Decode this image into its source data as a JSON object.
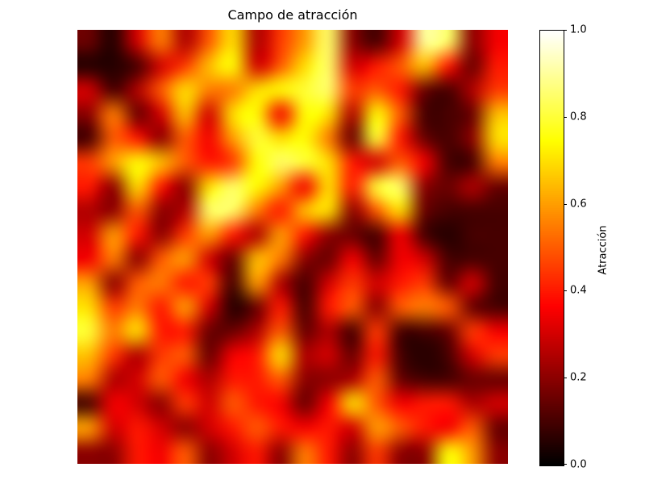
{
  "figure": {
    "background_color": "#ffffff",
    "text_color": "#000000"
  },
  "chart_data": {
    "type": "heatmap",
    "title": "Campo de atracción",
    "xlabel": "",
    "ylabel": "",
    "axis": "off",
    "grid": false,
    "legend": "none",
    "colorbar_label": "Atracción",
    "colorbar_position": "right",
    "vmin": 0.0,
    "vmax": 1.0,
    "colormap": "hot",
    "colormap_stops": [
      {
        "t": 0.0,
        "color": "#000000"
      },
      {
        "t": 0.365,
        "color": "#ff0000"
      },
      {
        "t": 0.746,
        "color": "#ffff00"
      },
      {
        "t": 1.0,
        "color": "#ffffff"
      }
    ],
    "colorbar_ticks": [
      {
        "value": 0.0,
        "label": "0.0"
      },
      {
        "value": 0.2,
        "label": "0.2"
      },
      {
        "value": 0.4,
        "label": "0.4"
      },
      {
        "value": 0.6,
        "label": "0.6"
      },
      {
        "value": 0.8,
        "label": "0.8"
      },
      {
        "value": 1.0,
        "label": "1.0"
      }
    ],
    "grid_size": {
      "rows": 18,
      "cols": 18
    },
    "values": [
      [
        0.15,
        0.05,
        0.3,
        0.55,
        0.25,
        0.5,
        0.7,
        0.25,
        0.45,
        0.6,
        0.85,
        0.2,
        0.1,
        0.3,
        0.9,
        0.85,
        0.2,
        0.35
      ],
      [
        0.05,
        0.05,
        0.1,
        0.3,
        0.45,
        0.65,
        0.75,
        0.3,
        0.5,
        0.7,
        0.85,
        0.3,
        0.4,
        0.5,
        0.65,
        0.4,
        0.15,
        0.4
      ],
      [
        0.3,
        0.1,
        0.25,
        0.5,
        0.7,
        0.55,
        0.55,
        0.7,
        0.75,
        0.8,
        0.85,
        0.45,
        0.5,
        0.4,
        0.15,
        0.1,
        0.25,
        0.45
      ],
      [
        0.2,
        0.55,
        0.15,
        0.3,
        0.65,
        0.3,
        0.7,
        0.75,
        0.35,
        0.75,
        0.7,
        0.25,
        0.75,
        0.5,
        0.1,
        0.1,
        0.15,
        0.65
      ],
      [
        0.1,
        0.5,
        0.4,
        0.2,
        0.5,
        0.35,
        0.6,
        0.8,
        0.7,
        0.75,
        0.55,
        0.15,
        0.8,
        0.4,
        0.15,
        0.1,
        0.2,
        0.7
      ],
      [
        0.45,
        0.6,
        0.75,
        0.65,
        0.5,
        0.4,
        0.45,
        0.75,
        0.85,
        0.8,
        0.7,
        0.4,
        0.3,
        0.5,
        0.35,
        0.1,
        0.1,
        0.55
      ],
      [
        0.4,
        0.2,
        0.7,
        0.4,
        0.2,
        0.7,
        0.85,
        0.75,
        0.6,
        0.35,
        0.7,
        0.4,
        0.8,
        0.85,
        0.2,
        0.15,
        0.25,
        0.15
      ],
      [
        0.25,
        0.2,
        0.5,
        0.2,
        0.25,
        0.85,
        0.85,
        0.55,
        0.4,
        0.65,
        0.7,
        0.2,
        0.5,
        0.7,
        0.15,
        0.1,
        0.1,
        0.1
      ],
      [
        0.3,
        0.6,
        0.4,
        0.2,
        0.45,
        0.6,
        0.4,
        0.25,
        0.6,
        0.4,
        0.2,
        0.15,
        0.1,
        0.35,
        0.1,
        0.05,
        0.1,
        0.1
      ],
      [
        0.35,
        0.55,
        0.2,
        0.5,
        0.6,
        0.3,
        0.15,
        0.65,
        0.55,
        0.2,
        0.15,
        0.35,
        0.15,
        0.35,
        0.3,
        0.1,
        0.1,
        0.1
      ],
      [
        0.6,
        0.2,
        0.5,
        0.55,
        0.4,
        0.45,
        0.1,
        0.6,
        0.25,
        0.1,
        0.3,
        0.45,
        0.3,
        0.4,
        0.45,
        0.15,
        0.3,
        0.1
      ],
      [
        0.7,
        0.45,
        0.55,
        0.4,
        0.6,
        0.3,
        0.05,
        0.15,
        0.4,
        0.1,
        0.4,
        0.5,
        0.2,
        0.5,
        0.55,
        0.5,
        0.15,
        0.1
      ],
      [
        0.8,
        0.55,
        0.7,
        0.4,
        0.4,
        0.15,
        0.15,
        0.25,
        0.5,
        0.15,
        0.25,
        0.1,
        0.45,
        0.1,
        0.1,
        0.15,
        0.45,
        0.35
      ],
      [
        0.65,
        0.45,
        0.25,
        0.45,
        0.5,
        0.15,
        0.35,
        0.4,
        0.7,
        0.25,
        0.3,
        0.15,
        0.4,
        0.1,
        0.05,
        0.1,
        0.3,
        0.45
      ],
      [
        0.55,
        0.25,
        0.3,
        0.5,
        0.35,
        0.25,
        0.4,
        0.4,
        0.5,
        0.2,
        0.2,
        0.25,
        0.5,
        0.15,
        0.1,
        0.1,
        0.15,
        0.15
      ],
      [
        0.1,
        0.35,
        0.3,
        0.2,
        0.45,
        0.3,
        0.5,
        0.4,
        0.35,
        0.15,
        0.35,
        0.7,
        0.5,
        0.35,
        0.4,
        0.4,
        0.25,
        0.3
      ],
      [
        0.6,
        0.3,
        0.4,
        0.3,
        0.2,
        0.3,
        0.4,
        0.5,
        0.4,
        0.35,
        0.4,
        0.3,
        0.6,
        0.5,
        0.4,
        0.35,
        0.5,
        0.15
      ],
      [
        0.2,
        0.2,
        0.4,
        0.35,
        0.5,
        0.2,
        0.3,
        0.4,
        0.2,
        0.55,
        0.4,
        0.2,
        0.45,
        0.2,
        0.2,
        0.75,
        0.6,
        0.2
      ]
    ]
  }
}
